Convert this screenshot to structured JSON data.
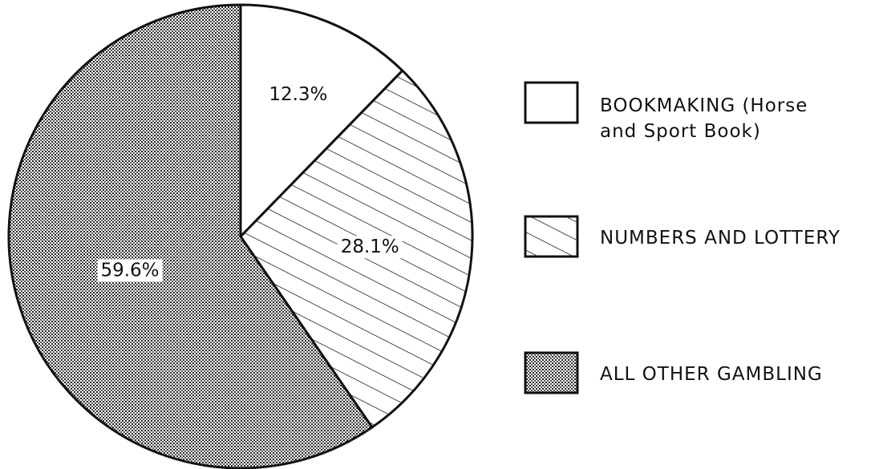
{
  "chart_data": {
    "type": "pie",
    "categories": [
      "BOOKMAKING (Horse and Sport Book)",
      "NUMBERS AND LOTTERY",
      "ALL OTHER GAMBLING"
    ],
    "values": [
      12.3,
      28.1,
      59.6
    ],
    "value_labels": [
      "12.3%",
      "28.1%",
      "59.6%"
    ],
    "patterns": [
      "none",
      "hatch",
      "dots"
    ],
    "start_angle": 0,
    "direction": "clockwise",
    "legend": "right"
  }
}
